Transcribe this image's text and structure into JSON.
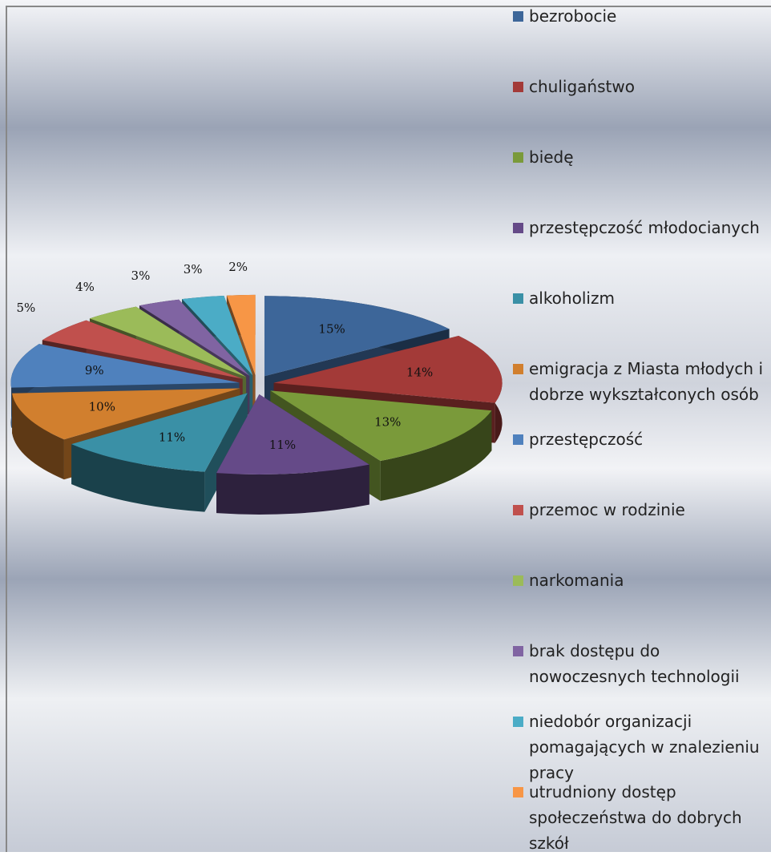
{
  "chart_data": {
    "type": "pie",
    "categories": [
      "bezrobocie",
      "chuligaństwo",
      "biedę",
      "przestępczość młodocianych",
      "alkoholizm",
      "emigracja z Miasta młodych i dobrze wykształconych osób",
      "przestępczość",
      "przemoc w rodzinie",
      "narkomania",
      "brak dostępu do nowoczesnych technologii",
      "niedobór organizacji pomagających w znalezieniu pracy",
      "utrudniony dostęp społeczeństwa do dobrych szkół"
    ],
    "values": [
      15,
      14,
      13,
      11,
      11,
      10,
      9,
      5,
      4,
      3,
      3,
      2
    ],
    "value_labels": [
      "15%",
      "14%",
      "13%",
      "11%",
      "11%",
      "10%",
      "9%",
      "5%",
      "4%",
      "3%",
      "3%",
      "2%"
    ],
    "colors": [
      "#3d6699",
      "#a33a38",
      "#7a9a3a",
      "#654a88",
      "#3a90a6",
      "#d17f2e",
      "#4f81bd",
      "#c0504d",
      "#9bbb59",
      "#8064a2",
      "#4bacc6",
      "#f79646"
    ],
    "legend": "right"
  }
}
